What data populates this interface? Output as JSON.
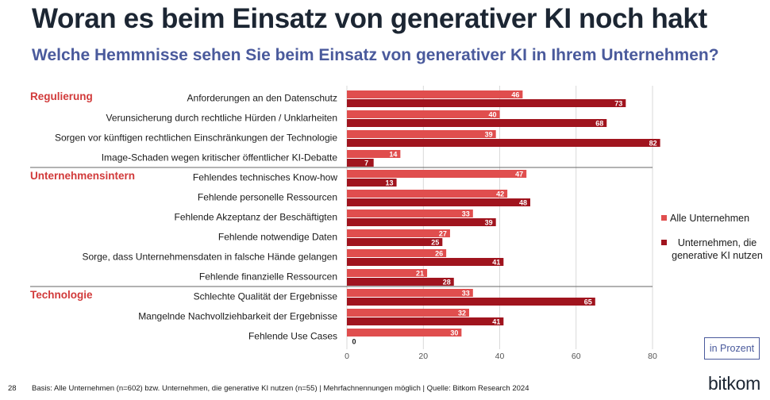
{
  "header": {
    "title": "Woran es beim Einsatz von generativer KI noch hakt",
    "subtitle": "Welche Hemmnisse sehen Sie beim Einsatz von generativer KI in Ihrem Unternehmen?"
  },
  "legend": {
    "all": "Alle Unternehmen",
    "genai": "Unternehmen, die generative KI nutzen"
  },
  "unit_note": "in Prozent",
  "footer": {
    "page_number": "28",
    "note": "Basis: Alle Unternehmen (n=602) bzw. Unternehmen, die generative KI nutzen (n=55) | Mehrfachnennungen möglich | Quelle: Bitkom Research 2024",
    "logo": "bitkom"
  },
  "colors": {
    "series_all": "#e04e4e",
    "series_genai": "#a0141e",
    "section_label": "#d13a3a",
    "title": "#1c2633",
    "subtitle": "#4a5a9c",
    "grid": "#d0d0d0"
  },
  "chart_data": {
    "type": "bar",
    "orientation": "horizontal",
    "xlim": [
      0,
      80
    ],
    "xticks": [
      0,
      20,
      40,
      60,
      80
    ],
    "legend_position": "right",
    "series": [
      {
        "name": "Alle Unternehmen",
        "key": "all"
      },
      {
        "name": "Unternehmen, die generative KI nutzen",
        "key": "genai"
      }
    ],
    "groups": [
      {
        "label": "Regulierung",
        "items": [
          {
            "label": "Anforderungen an den Datenschutz",
            "all": 46,
            "genai": 73
          },
          {
            "label": "Verunsicherung durch rechtliche Hürden / Unklarheiten",
            "all": 40,
            "genai": 68
          },
          {
            "label": "Sorgen vor künftigen rechtlichen Einschränkungen der Technologie",
            "all": 39,
            "genai": 82
          },
          {
            "label": "Image-Schaden wegen kritischer öffentlicher KI-Debatte",
            "all": 14,
            "genai": 7
          }
        ]
      },
      {
        "label": "Unternehmensintern",
        "items": [
          {
            "label": "Fehlendes technisches Know-how",
            "all": 47,
            "genai": 13
          },
          {
            "label": "Fehlende personelle Ressourcen",
            "all": 42,
            "genai": 48
          },
          {
            "label": "Fehlende Akzeptanz der Beschäftigten",
            "all": 33,
            "genai": 39
          },
          {
            "label": "Fehlende notwendige Daten",
            "all": 27,
            "genai": 25
          },
          {
            "label": "Sorge, dass Unternehmensdaten in falsche Hände gelangen",
            "all": 26,
            "genai": 41
          },
          {
            "label": "Fehlende finanzielle Ressourcen",
            "all": 21,
            "genai": 28
          }
        ]
      },
      {
        "label": "Technologie",
        "items": [
          {
            "label": "Schlechte Qualität der Ergebnisse",
            "all": 33,
            "genai": 65
          },
          {
            "label": "Mangelnde Nachvollziehbarkeit der Ergebnisse",
            "all": 32,
            "genai": 41
          },
          {
            "label": "Fehlende Use Cases",
            "all": 30,
            "genai": 0
          }
        ]
      }
    ]
  }
}
